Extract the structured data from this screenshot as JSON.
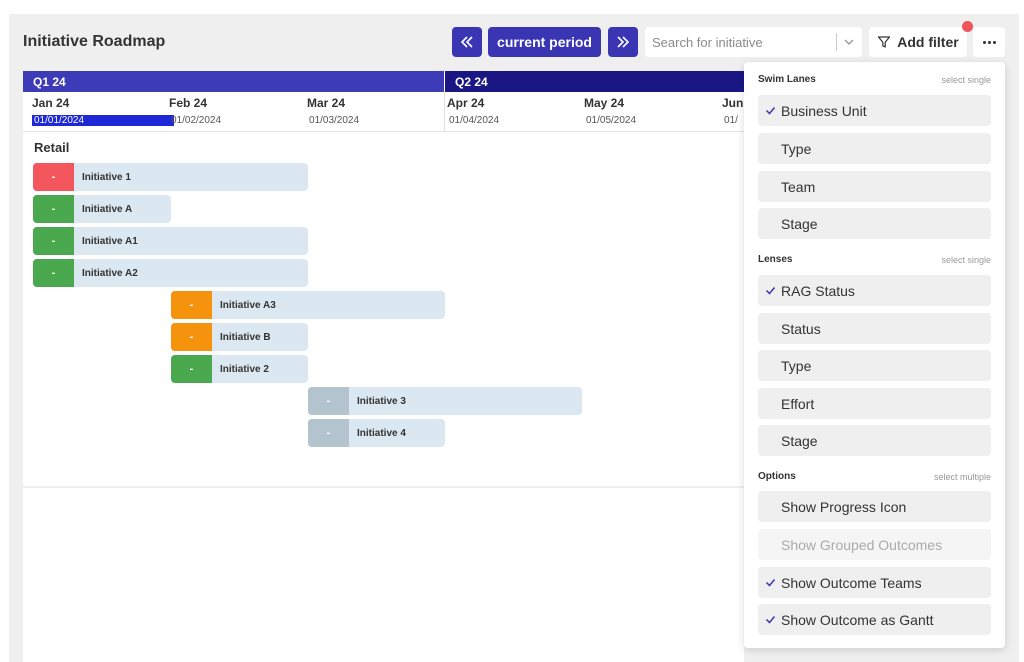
{
  "header": {
    "title": "Initiative Roadmap",
    "current_period_label": "current period",
    "search_placeholder": "Search for initiative",
    "add_filter_label": "Add filter"
  },
  "quarters": [
    {
      "label": "Q1 24",
      "color": "#3d3bb8"
    },
    {
      "label": "Q2 24",
      "color": "#1a1785"
    }
  ],
  "months": [
    {
      "name": "Jan 24",
      "date": "01/01/2024"
    },
    {
      "name": "Feb 24",
      "date": "01/02/2024"
    },
    {
      "name": "Mar 24",
      "date": "01/03/2024"
    },
    {
      "name": "Apr 24",
      "date": "01/04/2024"
    },
    {
      "name": "May 24",
      "date": "01/05/2024"
    },
    {
      "name": "Jun",
      "date": "01/"
    }
  ],
  "lane": {
    "title": "Retail"
  },
  "initiatives": [
    {
      "name": "Initiative 1",
      "rag": "-",
      "rag_color": "#f4565e"
    },
    {
      "name": "Initiative A",
      "rag": "-",
      "rag_color": "#4aa84f"
    },
    {
      "name": "Initiative A1",
      "rag": "-",
      "rag_color": "#4aa84f"
    },
    {
      "name": "Initiative A2",
      "rag": "-",
      "rag_color": "#4aa84f"
    },
    {
      "name": "Initiative A3",
      "rag": "-",
      "rag_color": "#f5930c"
    },
    {
      "name": "Initiative B",
      "rag": "-",
      "rag_color": "#f5930c"
    },
    {
      "name": "Initiative 2",
      "rag": "-",
      "rag_color": "#4aa84f"
    },
    {
      "name": "Initiative 3",
      "rag": "-",
      "rag_color": "#b3c4cf"
    },
    {
      "name": "Initiative 4",
      "rag": "-",
      "rag_color": "#b3c4cf"
    }
  ],
  "dropdown": {
    "swim_lanes": {
      "title": "Swim Lanes",
      "hint": "select single",
      "items": [
        {
          "label": "Business Unit",
          "checked": true
        },
        {
          "label": "Type",
          "checked": false
        },
        {
          "label": "Team",
          "checked": false
        },
        {
          "label": "Stage",
          "checked": false
        }
      ]
    },
    "lenses": {
      "title": "Lenses",
      "hint": "select single",
      "items": [
        {
          "label": "RAG Status",
          "checked": true
        },
        {
          "label": "Status",
          "checked": false
        },
        {
          "label": "Type",
          "checked": false
        },
        {
          "label": "Effort",
          "checked": false
        },
        {
          "label": "Stage",
          "checked": false
        }
      ]
    },
    "options": {
      "title": "Options",
      "hint": "select multiple",
      "items": [
        {
          "label": "Show Progress Icon",
          "checked": false
        },
        {
          "label": "Show Grouped Outcomes",
          "checked": false,
          "disabled": true
        },
        {
          "label": "Show Outcome Teams",
          "checked": true
        },
        {
          "label": "Show Outcome as Gantt",
          "checked": true
        }
      ]
    }
  },
  "colors": {
    "accent": "#3a36b3",
    "check": "#3a36b3",
    "bar_bg": "#dbe8f2"
  }
}
